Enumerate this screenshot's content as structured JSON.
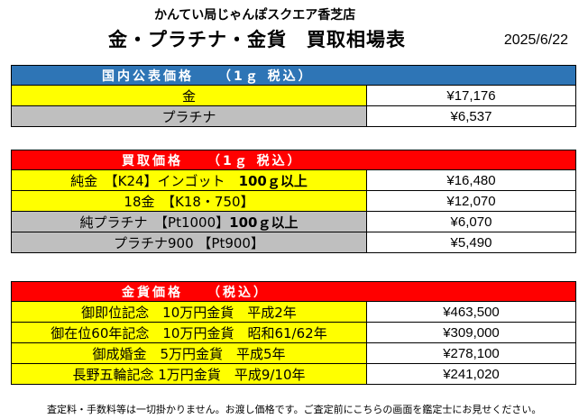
{
  "header": {
    "shop": "かんてい局じゃんぽスクエア香芝店",
    "title": "金・プラチナ・金貨　買取相場表",
    "date": "2025/6/22"
  },
  "sections": [
    {
      "title": "国内公表価格　　（1ｇ 税込）",
      "color": "#2e75b6",
      "rows": [
        {
          "name": "金",
          "price": "¥17,176"
        },
        {
          "name": "プラチナ",
          "price": "¥6,537"
        }
      ]
    },
    {
      "title": "買取価格　　（1ｇ 税込）",
      "color": "#ff0000",
      "rows": [
        {
          "name": "純金　【K24】インゴット　",
          "name_bold": "100ｇ以上",
          "price": "¥16,480"
        },
        {
          "name": "18金　【K18・750】",
          "price": "¥12,070"
        },
        {
          "name": "純プラチナ　【Pt1000】",
          "name_bold": "100ｇ以上",
          "price": "¥6,070"
        },
        {
          "name": "プラチナ900 【Pt900】",
          "price": "¥5,490"
        }
      ]
    },
    {
      "title": "金貨価格　　（税込）",
      "color": "#ff0000",
      "rows": [
        {
          "name": "御即位記念　10万円金貨　平成2年",
          "price": "¥463,500"
        },
        {
          "name": "御在位60年記念　10万円金貨　昭和61/62年",
          "price": "¥309,000"
        },
        {
          "name": "御成婚金　5万円金貨　平成5年",
          "price": "¥278,100"
        },
        {
          "name": "長野五輪記念 1万円金貨　平成9/10年",
          "price": "¥241,020"
        }
      ]
    }
  ],
  "footer": {
    "note": "査定料・手数料等は一切掛かりません。お渡し価格です。ご査定前にこちらの画面を鑑定士にお見せください。"
  }
}
